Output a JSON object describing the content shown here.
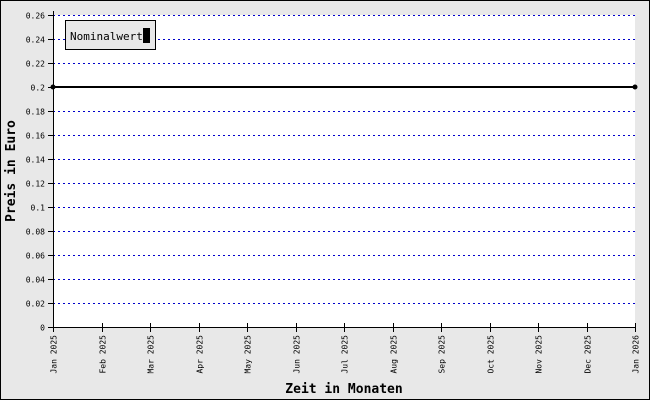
{
  "chart_data": {
    "type": "line",
    "xlabel": "Zeit in Monaten",
    "ylabel": "Preis in Euro",
    "categories": [
      "Jan 2025",
      "Feb 2025",
      "Mar 2025",
      "Apr 2025",
      "May 2025",
      "Jun 2025",
      "Jul 2025",
      "Aug 2025",
      "Sep 2025",
      "Oct 2025",
      "Nov 2025",
      "Dec 2025",
      "Jan 2026"
    ],
    "ylim": [
      0,
      0.26
    ],
    "yticks": [
      "0",
      "0.02",
      "0.04",
      "0.06",
      "0.08",
      "0.1",
      "0.12",
      "0.14",
      "0.16",
      "0.18",
      "0.2",
      "0.22",
      "0.24",
      "0.26"
    ],
    "grid": true,
    "legend_position": "top-left",
    "series": [
      {
        "name": "Nominalwert",
        "color": "#000000",
        "points": [
          {
            "x": "Jan 2025",
            "y": 0.2
          },
          {
            "x": "Jan 2026",
            "y": 0.2
          }
        ]
      }
    ],
    "colors": {
      "background": "#e8e8e8",
      "plot": "#ffffff",
      "grid": "#0000cc"
    }
  }
}
